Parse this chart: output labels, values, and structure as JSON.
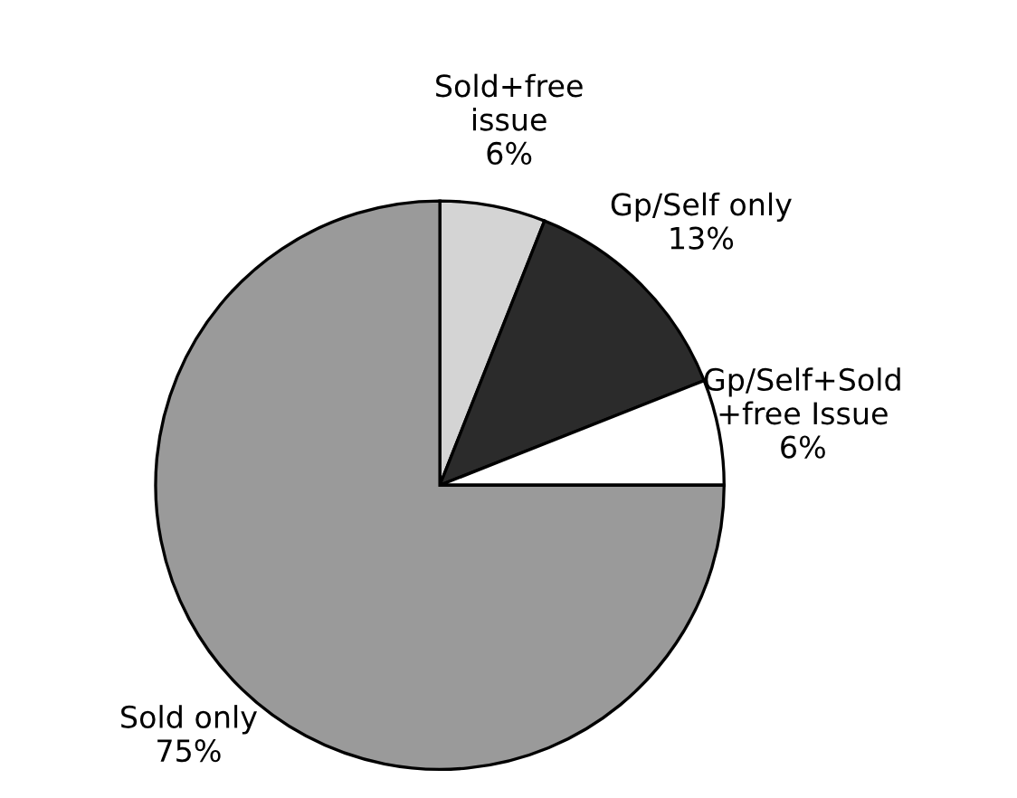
{
  "chart_data": {
    "type": "pie",
    "categories": [
      "Sold+free\nissue",
      "Gp/Self only",
      "Gp/Self+Sold\n+free Issue",
      "Sold only"
    ],
    "values": [
      6,
      13,
      6,
      75
    ],
    "value_labels": [
      "6%",
      "13%",
      "6%",
      "75%"
    ],
    "colors": [
      "#d4d4d4",
      "#2b2b2b",
      "#ffffff",
      "#9a9a9a"
    ],
    "legend": false
  }
}
